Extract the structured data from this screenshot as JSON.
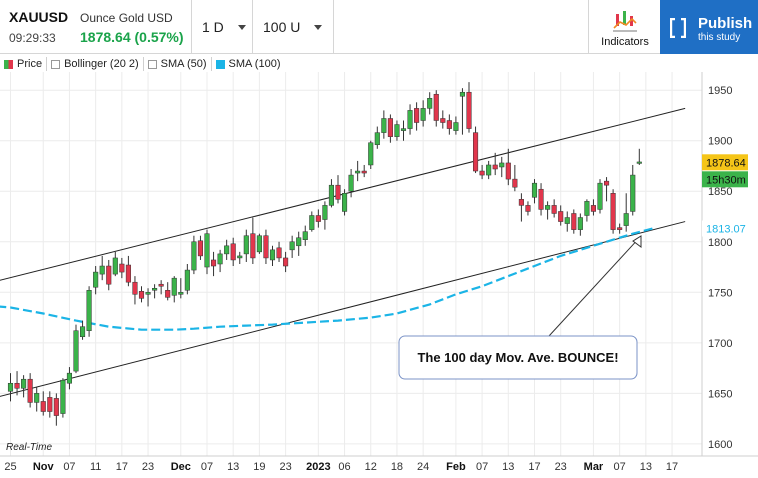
{
  "header": {
    "symbol": "XAUUSD",
    "name": "Ounce Gold USD",
    "time": "09:29:33",
    "price": "1878.64 (0.57%)",
    "interval": "1 D",
    "bars": "100 U",
    "indicators_label": "Indicators",
    "publish_label": "Publish",
    "publish_sub": "this study"
  },
  "legend": [
    "Price",
    "Bollinger (20 2)",
    "SMA (50)",
    "SMA (100)"
  ],
  "colors": {
    "up": "#3bb34a",
    "down": "#e1364c",
    "sma100": "#1bb4e6",
    "price_tag": "#f5c518",
    "time_tag": "#3bb34a",
    "sma_tag": "#1bb4e6",
    "publish": "#1f6fc5",
    "annotation_border": "#7b93c7"
  },
  "realtime_label": "Real-Time",
  "price_tag": "1878.64",
  "time_tag": "15h30m",
  "sma_tag": "1813.07",
  "annotation": "The 100 day Mov. Ave. BOUNCE!",
  "chart_data": {
    "type": "candlestick",
    "ylim": [
      1588,
      1968
    ],
    "y_ticks": [
      1600,
      1650,
      1700,
      1750,
      1800,
      1850,
      1900,
      1950
    ],
    "x_ticks": [
      {
        "label": "25",
        "index": 0
      },
      {
        "label": "Nov",
        "index": 5,
        "bold": true
      },
      {
        "label": "07",
        "index": 9
      },
      {
        "label": "11",
        "index": 13
      },
      {
        "label": "17",
        "index": 17
      },
      {
        "label": "23",
        "index": 21
      },
      {
        "label": "Dec",
        "index": 26,
        "bold": true
      },
      {
        "label": "07",
        "index": 30
      },
      {
        "label": "13",
        "index": 34
      },
      {
        "label": "19",
        "index": 38
      },
      {
        "label": "23",
        "index": 42
      },
      {
        "label": "2023",
        "index": 47,
        "bold": true
      },
      {
        "label": "06",
        "index": 51
      },
      {
        "label": "12",
        "index": 55
      },
      {
        "label": "18",
        "index": 59
      },
      {
        "label": "24",
        "index": 63
      },
      {
        "label": "Feb",
        "index": 68,
        "bold": true
      },
      {
        "label": "07",
        "index": 72
      },
      {
        "label": "13",
        "index": 76
      },
      {
        "label": "17",
        "index": 80
      },
      {
        "label": "23",
        "index": 84
      },
      {
        "label": "Mar",
        "index": 89,
        "bold": true
      },
      {
        "label": "07",
        "index": 93
      },
      {
        "label": "13",
        "index": 97
      },
      {
        "label": "17",
        "index": 101
      }
    ],
    "candles": [
      {
        "o": 1652,
        "h": 1670,
        "l": 1642,
        "c": 1660
      },
      {
        "o": 1660,
        "h": 1672,
        "l": 1648,
        "c": 1655
      },
      {
        "o": 1655,
        "h": 1668,
        "l": 1646,
        "c": 1664
      },
      {
        "o": 1664,
        "h": 1670,
        "l": 1636,
        "c": 1641
      },
      {
        "o": 1641,
        "h": 1656,
        "l": 1632,
        "c": 1650
      },
      {
        "o": 1642,
        "h": 1652,
        "l": 1628,
        "c": 1632
      },
      {
        "o": 1646,
        "h": 1652,
        "l": 1626,
        "c": 1632
      },
      {
        "o": 1645,
        "h": 1650,
        "l": 1618,
        "c": 1628
      },
      {
        "o": 1630,
        "h": 1665,
        "l": 1626,
        "c": 1663
      },
      {
        "o": 1660,
        "h": 1676,
        "l": 1654,
        "c": 1670
      },
      {
        "o": 1672,
        "h": 1718,
        "l": 1670,
        "c": 1712
      },
      {
        "o": 1706,
        "h": 1722,
        "l": 1703,
        "c": 1716
      },
      {
        "o": 1712,
        "h": 1756,
        "l": 1706,
        "c": 1752
      },
      {
        "o": 1755,
        "h": 1776,
        "l": 1748,
        "c": 1770
      },
      {
        "o": 1768,
        "h": 1786,
        "l": 1762,
        "c": 1776
      },
      {
        "o": 1776,
        "h": 1782,
        "l": 1752,
        "c": 1758
      },
      {
        "o": 1768,
        "h": 1790,
        "l": 1766,
        "c": 1784
      },
      {
        "o": 1778,
        "h": 1784,
        "l": 1764,
        "c": 1770
      },
      {
        "o": 1777,
        "h": 1786,
        "l": 1756,
        "c": 1760
      },
      {
        "o": 1760,
        "h": 1766,
        "l": 1738,
        "c": 1748
      },
      {
        "o": 1751,
        "h": 1756,
        "l": 1740,
        "c": 1744
      },
      {
        "o": 1748,
        "h": 1754,
        "l": 1736,
        "c": 1750
      },
      {
        "o": 1752,
        "h": 1758,
        "l": 1744,
        "c": 1754
      },
      {
        "o": 1758,
        "h": 1762,
        "l": 1748,
        "c": 1756
      },
      {
        "o": 1752,
        "h": 1760,
        "l": 1742,
        "c": 1745
      },
      {
        "o": 1747,
        "h": 1766,
        "l": 1740,
        "c": 1764
      },
      {
        "o": 1748,
        "h": 1764,
        "l": 1744,
        "c": 1750
      },
      {
        "o": 1752,
        "h": 1778,
        "l": 1748,
        "c": 1772
      },
      {
        "o": 1772,
        "h": 1806,
        "l": 1768,
        "c": 1800
      },
      {
        "o": 1801,
        "h": 1806,
        "l": 1782,
        "c": 1786
      },
      {
        "o": 1775,
        "h": 1812,
        "l": 1768,
        "c": 1808
      },
      {
        "o": 1782,
        "h": 1790,
        "l": 1766,
        "c": 1776
      },
      {
        "o": 1778,
        "h": 1792,
        "l": 1770,
        "c": 1788
      },
      {
        "o": 1788,
        "h": 1802,
        "l": 1782,
        "c": 1796
      },
      {
        "o": 1798,
        "h": 1804,
        "l": 1776,
        "c": 1782
      },
      {
        "o": 1784,
        "h": 1790,
        "l": 1778,
        "c": 1786
      },
      {
        "o": 1788,
        "h": 1812,
        "l": 1780,
        "c": 1806
      },
      {
        "o": 1808,
        "h": 1824,
        "l": 1778,
        "c": 1784
      },
      {
        "o": 1790,
        "h": 1808,
        "l": 1788,
        "c": 1806
      },
      {
        "o": 1806,
        "h": 1812,
        "l": 1778,
        "c": 1784
      },
      {
        "o": 1782,
        "h": 1796,
        "l": 1776,
        "c": 1792
      },
      {
        "o": 1794,
        "h": 1800,
        "l": 1780,
        "c": 1784
      },
      {
        "o": 1784,
        "h": 1790,
        "l": 1770,
        "c": 1776
      },
      {
        "o": 1792,
        "h": 1806,
        "l": 1784,
        "c": 1800
      },
      {
        "o": 1796,
        "h": 1810,
        "l": 1786,
        "c": 1804
      },
      {
        "o": 1802,
        "h": 1816,
        "l": 1796,
        "c": 1810
      },
      {
        "o": 1812,
        "h": 1830,
        "l": 1810,
        "c": 1826
      },
      {
        "o": 1826,
        "h": 1832,
        "l": 1814,
        "c": 1820
      },
      {
        "o": 1822,
        "h": 1840,
        "l": 1812,
        "c": 1836
      },
      {
        "o": 1836,
        "h": 1862,
        "l": 1834,
        "c": 1856
      },
      {
        "o": 1856,
        "h": 1866,
        "l": 1838,
        "c": 1842
      },
      {
        "o": 1830,
        "h": 1852,
        "l": 1826,
        "c": 1848
      },
      {
        "o": 1850,
        "h": 1872,
        "l": 1844,
        "c": 1866
      },
      {
        "o": 1868,
        "h": 1880,
        "l": 1860,
        "c": 1870
      },
      {
        "o": 1870,
        "h": 1876,
        "l": 1864,
        "c": 1868
      },
      {
        "o": 1876,
        "h": 1900,
        "l": 1872,
        "c": 1898
      },
      {
        "o": 1896,
        "h": 1914,
        "l": 1892,
        "c": 1908
      },
      {
        "o": 1908,
        "h": 1930,
        "l": 1902,
        "c": 1922
      },
      {
        "o": 1922,
        "h": 1926,
        "l": 1898,
        "c": 1904
      },
      {
        "o": 1904,
        "h": 1920,
        "l": 1900,
        "c": 1916
      },
      {
        "o": 1910,
        "h": 1920,
        "l": 1900,
        "c": 1912
      },
      {
        "o": 1912,
        "h": 1936,
        "l": 1906,
        "c": 1930
      },
      {
        "o": 1932,
        "h": 1938,
        "l": 1910,
        "c": 1918
      },
      {
        "o": 1920,
        "h": 1940,
        "l": 1914,
        "c": 1932
      },
      {
        "o": 1932,
        "h": 1948,
        "l": 1926,
        "c": 1942
      },
      {
        "o": 1946,
        "h": 1950,
        "l": 1914,
        "c": 1920
      },
      {
        "o": 1922,
        "h": 1930,
        "l": 1912,
        "c": 1918
      },
      {
        "o": 1920,
        "h": 1926,
        "l": 1906,
        "c": 1912
      },
      {
        "o": 1910,
        "h": 1924,
        "l": 1906,
        "c": 1918
      },
      {
        "o": 1944,
        "h": 1952,
        "l": 1906,
        "c": 1948
      },
      {
        "o": 1948,
        "h": 1958,
        "l": 1908,
        "c": 1912
      },
      {
        "o": 1908,
        "h": 1914,
        "l": 1868,
        "c": 1870
      },
      {
        "o": 1870,
        "h": 1876,
        "l": 1862,
        "c": 1866
      },
      {
        "o": 1866,
        "h": 1880,
        "l": 1862,
        "c": 1876
      },
      {
        "o": 1876,
        "h": 1888,
        "l": 1866,
        "c": 1872
      },
      {
        "o": 1874,
        "h": 1884,
        "l": 1864,
        "c": 1878
      },
      {
        "o": 1878,
        "h": 1892,
        "l": 1856,
        "c": 1862
      },
      {
        "o": 1862,
        "h": 1876,
        "l": 1850,
        "c": 1854
      },
      {
        "o": 1842,
        "h": 1848,
        "l": 1820,
        "c": 1836
      },
      {
        "o": 1836,
        "h": 1840,
        "l": 1826,
        "c": 1830
      },
      {
        "o": 1844,
        "h": 1862,
        "l": 1838,
        "c": 1858
      },
      {
        "o": 1852,
        "h": 1858,
        "l": 1826,
        "c": 1832
      },
      {
        "o": 1832,
        "h": 1840,
        "l": 1822,
        "c": 1836
      },
      {
        "o": 1836,
        "h": 1842,
        "l": 1824,
        "c": 1828
      },
      {
        "o": 1830,
        "h": 1836,
        "l": 1816,
        "c": 1820
      },
      {
        "o": 1818,
        "h": 1830,
        "l": 1810,
        "c": 1824
      },
      {
        "o": 1828,
        "h": 1832,
        "l": 1808,
        "c": 1812
      },
      {
        "o": 1812,
        "h": 1828,
        "l": 1806,
        "c": 1824
      },
      {
        "o": 1826,
        "h": 1842,
        "l": 1820,
        "c": 1840
      },
      {
        "o": 1836,
        "h": 1842,
        "l": 1826,
        "c": 1830
      },
      {
        "o": 1832,
        "h": 1862,
        "l": 1828,
        "c": 1858
      },
      {
        "o": 1860,
        "h": 1864,
        "l": 1840,
        "c": 1856
      },
      {
        "o": 1848,
        "h": 1852,
        "l": 1808,
        "c": 1812
      },
      {
        "o": 1814,
        "h": 1818,
        "l": 1808,
        "c": 1812
      },
      {
        "o": 1816,
        "h": 1848,
        "l": 1810,
        "c": 1828
      },
      {
        "o": 1830,
        "h": 1876,
        "l": 1826,
        "c": 1866
      },
      {
        "o": 1878,
        "h": 1892,
        "l": 1876,
        "c": 1879
      }
    ],
    "sma100": [
      [
        -4,
        1737
      ],
      [
        0,
        1735
      ],
      [
        5,
        1729
      ],
      [
        10,
        1722
      ],
      [
        15,
        1716
      ],
      [
        20,
        1713
      ],
      [
        25,
        1713
      ],
      [
        28,
        1714
      ],
      [
        32,
        1716
      ],
      [
        36,
        1717
      ],
      [
        40,
        1718
      ],
      [
        45,
        1720
      ],
      [
        50,
        1722
      ],
      [
        55,
        1725
      ],
      [
        59,
        1729
      ],
      [
        64,
        1738
      ],
      [
        68,
        1748
      ],
      [
        72,
        1756
      ],
      [
        76,
        1766
      ],
      [
        80,
        1776
      ],
      [
        84,
        1786
      ],
      [
        88,
        1794
      ],
      [
        92,
        1802
      ],
      [
        95,
        1808
      ],
      [
        98,
        1813
      ]
    ],
    "trend_upper": [
      [
        -4,
        1758
      ],
      [
        103,
        1932
      ]
    ],
    "trend_lower": [
      [
        -4,
        1643
      ],
      [
        103,
        1820
      ]
    ]
  }
}
